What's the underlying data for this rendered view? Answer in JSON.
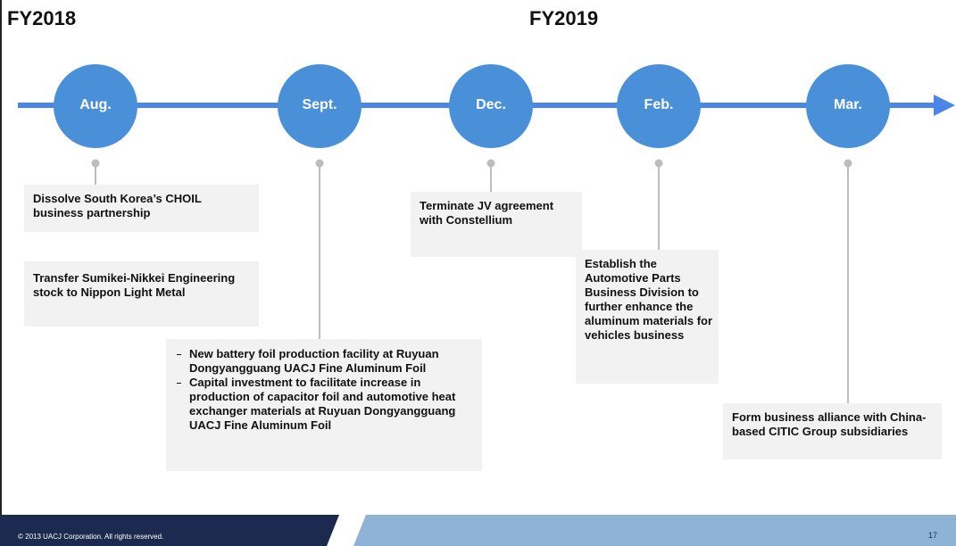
{
  "header": {
    "fy_left": "FY2018",
    "fy_right": "FY2019"
  },
  "milestones": [
    {
      "month": "Aug.",
      "events": [
        "Dissolve South Korea’s CHOIL business partnership",
        "Transfer Sumikei-Nikkei Engineering stock to Nippon Light Metal"
      ]
    },
    {
      "month": "Sept.",
      "events": [
        "New battery foil production facility at Ruyuan Dongyangguang UACJ Fine Aluminum Foil",
        "Capital investment to facilitate increase in production of capacitor foil and automotive heat exchanger materials at Ruyuan Dongyangguang UACJ Fine Aluminum Foil"
      ]
    },
    {
      "month": "Dec.",
      "events": [
        "Terminate JV agreement with Constellium"
      ]
    },
    {
      "month": "Feb.",
      "events": [
        "Establish the Automotive Parts Business Division to further enhance the aluminum materials for vehicles business"
      ]
    },
    {
      "month": "Mar.",
      "events": [
        "Form business alliance with China-based CITIC Group subsidiaries"
      ]
    }
  ],
  "footer": {
    "copyright": "© 2013 UACJ Corporation. All rights reserved.",
    "page_number": "17"
  }
}
